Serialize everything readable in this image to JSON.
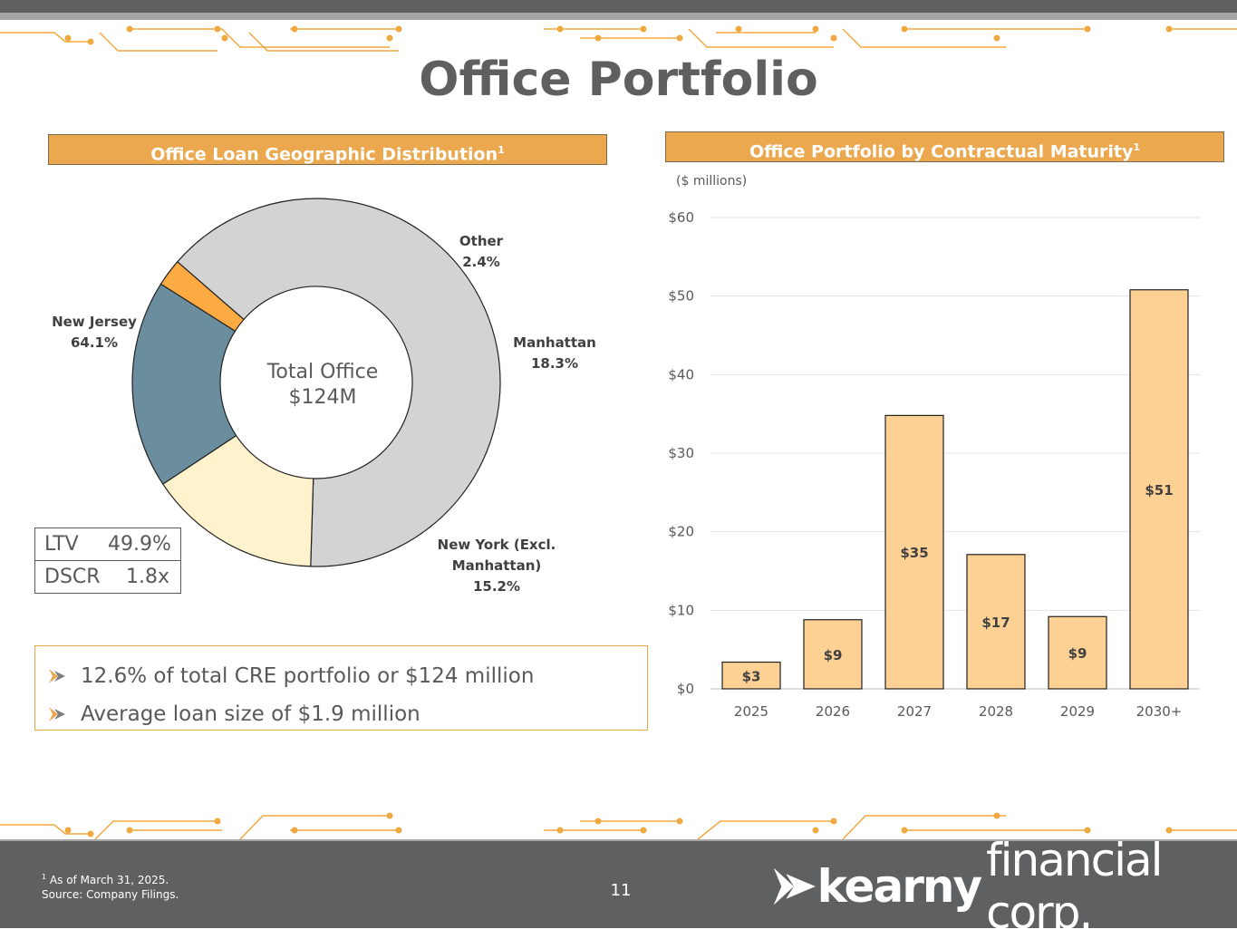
{
  "page": {
    "title": "Office Portfolio",
    "page_number": "11"
  },
  "left_panel": {
    "header": "Office Loan Geographic Distribution",
    "header_sup": "1",
    "center_label_line1": "Total Office",
    "center_label_line2": "$124M",
    "slices": [
      {
        "name": "New Jersey",
        "label_lines": [
          "New Jersey",
          "64.1%"
        ],
        "value": 64.1,
        "color": "#d3d3d3"
      },
      {
        "name": "New York (Excl. Manhattan)",
        "label_lines": [
          "New York  (Excl.",
          "Manhattan)",
          "15.2%"
        ],
        "value": 15.2,
        "color": "#fff2cc"
      },
      {
        "name": "Manhattan",
        "label_lines": [
          "Manhattan",
          "18.3%"
        ],
        "value": 18.3,
        "color": "#6a8e9e"
      },
      {
        "name": "Other",
        "label_lines": [
          "Other",
          "2.4%"
        ],
        "value": 2.4,
        "color": "#fbab41"
      }
    ],
    "kpis": [
      {
        "label": "LTV",
        "value": "49.9%"
      },
      {
        "label": "DSCR",
        "value": "1.8x"
      }
    ],
    "bullets": [
      "12.6% of total CRE portfolio or $124 million",
      "Average loan size of $1.9 million"
    ]
  },
  "right_panel": {
    "header": "Office Portfolio by Contractual Maturity",
    "header_sup": "1",
    "units_note": "($ millions)"
  },
  "chart_data": [
    {
      "type": "pie",
      "title": "Office Loan Geographic Distribution",
      "categories": [
        "New Jersey",
        "New York (Excl. Manhattan)",
        "Manhattan",
        "Other"
      ],
      "values": [
        64.1,
        15.2,
        18.3,
        2.4
      ],
      "units": "%",
      "center_text": "Total Office $124M"
    },
    {
      "type": "bar",
      "title": "Office Portfolio by Contractual Maturity",
      "categories": [
        "2025",
        "2026",
        "2027",
        "2028",
        "2029",
        "2030+"
      ],
      "values": [
        3.4,
        8.8,
        34.8,
        17.1,
        9.2,
        50.8
      ],
      "data_labels": [
        "$3",
        "$9",
        "$35",
        "$17",
        "$9",
        "$51"
      ],
      "ylabel": "($ millions)",
      "ylim": [
        0,
        60
      ],
      "yticks": [
        0,
        10,
        20,
        30,
        40,
        50,
        60
      ],
      "ytick_labels": [
        "$0",
        "$10",
        "$20",
        "$30",
        "$40",
        "$50",
        "$60"
      ],
      "grid": true,
      "bar_color": "#fdd093"
    }
  ],
  "footer": {
    "footnote_sup": "1",
    "footnote": "As of March 31, 2025.",
    "source": "Source: Company Filings.",
    "logo_bold": "kearny",
    "logo_light": "financial corp."
  },
  "colors": {
    "accent": "#eba84e",
    "dark_gray": "#5f6062",
    "text_gray": "#595959"
  }
}
